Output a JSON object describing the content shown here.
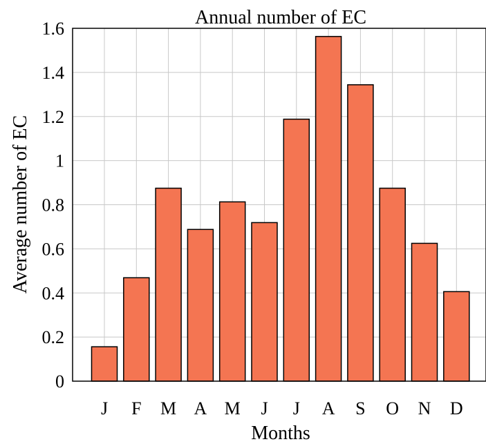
{
  "chart_data": {
    "type": "bar",
    "title": "Annual number of EC",
    "xlabel": "Months",
    "ylabel": "Average number of EC",
    "categories": [
      "J",
      "F",
      "M",
      "A",
      "M",
      "J",
      "J",
      "A",
      "S",
      "O",
      "N",
      "D"
    ],
    "values": [
      0.156,
      0.469,
      0.875,
      0.688,
      0.813,
      0.719,
      1.188,
      1.563,
      1.344,
      0.875,
      0.625,
      0.406
    ],
    "ylim": [
      0,
      1.6
    ],
    "yticks": [
      "0",
      "0.2",
      "0.4",
      "0.6",
      "0.8",
      "1",
      "1.2",
      "1.4",
      "1.6"
    ],
    "ytick_values": [
      0,
      0.2,
      0.4,
      0.6,
      0.8,
      1.0,
      1.2,
      1.4,
      1.6
    ],
    "grid": true,
    "bar_color": "#f47552"
  }
}
